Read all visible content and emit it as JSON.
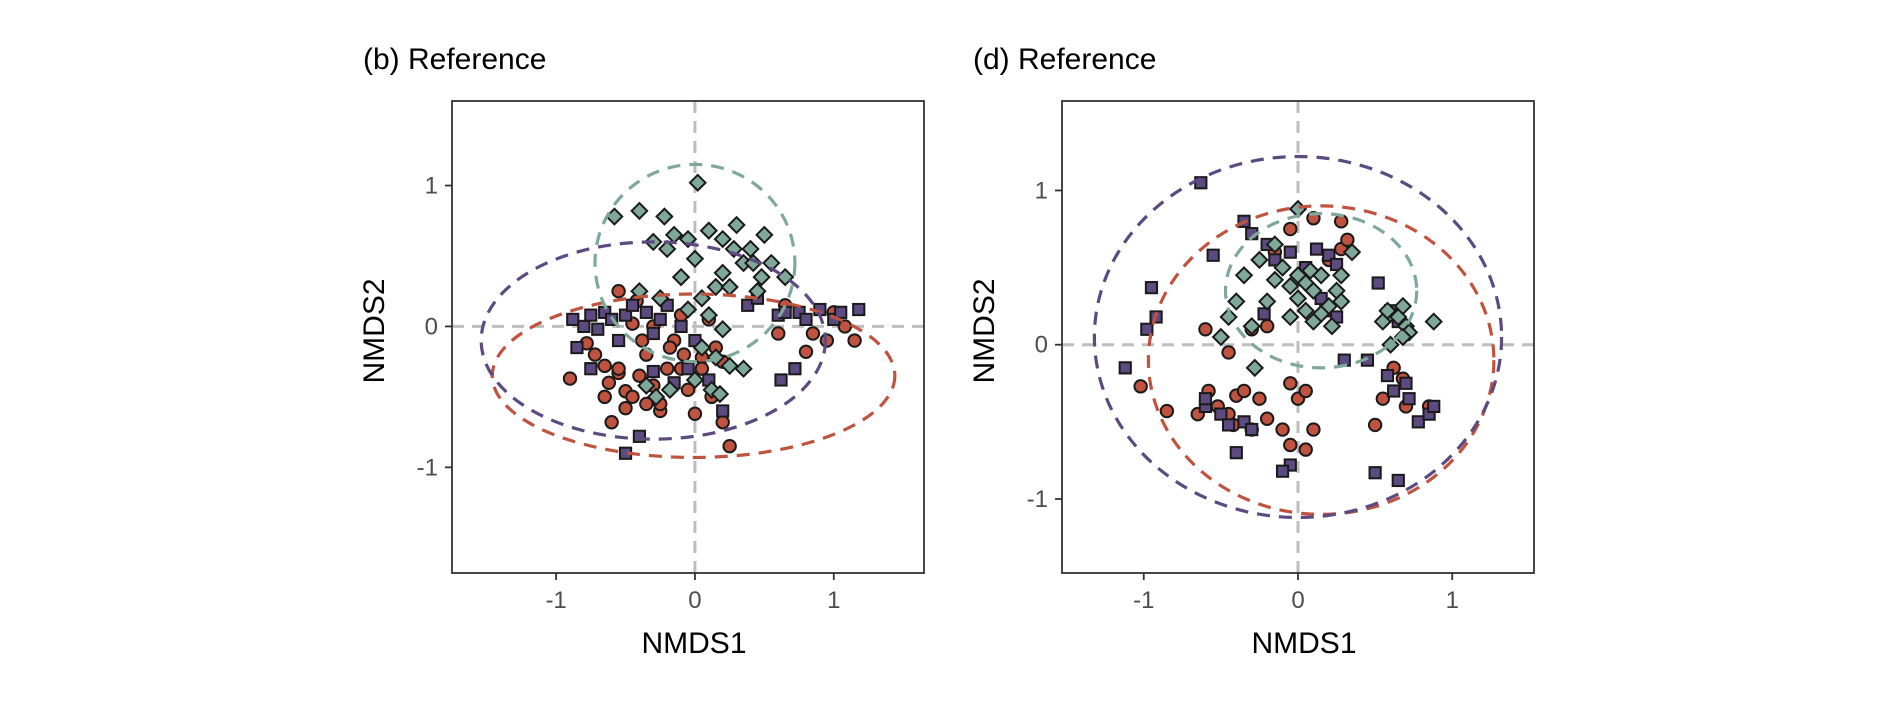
{
  "colors": {
    "series_1": "#c0533f",
    "series_2": "#5c4a80",
    "series_3": "#7fa89b",
    "reference_line": "#bdbdbd",
    "axis": "#333333"
  },
  "chart_data": [
    {
      "type": "scatter",
      "title": "(b) Reference",
      "xlabel": "NMDS1",
      "ylabel": "NMDS2",
      "xlim": [
        -1.75,
        1.65
      ],
      "ylim": [
        -1.75,
        1.6
      ],
      "xticks": [
        -1,
        0,
        1
      ],
      "yticks": [
        -1,
        0,
        1
      ],
      "xtick_labels": [
        "-1",
        "0",
        "1"
      ],
      "ytick_labels": [
        "-1",
        "0",
        "1"
      ],
      "reference_lines": {
        "x": 0,
        "y": 0
      },
      "grid": false,
      "legend": "none",
      "series": [
        {
          "marker": "circle",
          "color": "#c0533f",
          "points": [
            [
              -0.9,
              -0.37
            ],
            [
              -0.78,
              -0.12
            ],
            [
              -0.72,
              -0.2
            ],
            [
              -0.65,
              -0.28
            ],
            [
              -0.62,
              -0.4
            ],
            [
              -0.55,
              -0.33
            ],
            [
              -0.5,
              -0.46
            ],
            [
              -0.45,
              -0.5
            ],
            [
              -0.4,
              -0.35
            ],
            [
              -0.35,
              -0.2
            ],
            [
              -0.3,
              -0.42
            ],
            [
              -0.25,
              -0.6
            ],
            [
              -0.2,
              -0.3
            ],
            [
              -0.15,
              -0.1
            ],
            [
              -0.1,
              -0.3
            ],
            [
              -0.05,
              -0.45
            ],
            [
              0.0,
              -0.62
            ],
            [
              0.05,
              -0.22
            ],
            [
              0.12,
              -0.5
            ],
            [
              0.2,
              -0.68
            ],
            [
              0.25,
              -0.85
            ],
            [
              -0.6,
              -0.68
            ],
            [
              -0.55,
              0.25
            ],
            [
              -0.45,
              0.02
            ],
            [
              -0.42,
              0.18
            ],
            [
              -0.38,
              -0.1
            ],
            [
              -0.3,
              0.0
            ],
            [
              -0.25,
              -0.55
            ],
            [
              -0.18,
              -0.15
            ],
            [
              -0.1,
              0.08
            ],
            [
              -0.08,
              -0.2
            ],
            [
              0.05,
              -0.3
            ],
            [
              0.1,
              0.05
            ],
            [
              0.15,
              -0.15
            ],
            [
              0.2,
              -0.25
            ],
            [
              0.6,
              -0.05
            ],
            [
              0.65,
              0.15
            ],
            [
              0.8,
              -0.18
            ],
            [
              0.85,
              -0.05
            ],
            [
              0.95,
              -0.1
            ],
            [
              1.0,
              0.1
            ],
            [
              1.08,
              0.0
            ],
            [
              1.15,
              -0.1
            ],
            [
              -0.5,
              -0.58
            ],
            [
              -0.35,
              -0.55
            ],
            [
              -0.55,
              -0.3
            ],
            [
              -0.65,
              -0.5
            ]
          ]
        },
        {
          "marker": "square",
          "color": "#5c4a80",
          "points": [
            [
              -0.88,
              0.05
            ],
            [
              -0.8,
              0.0
            ],
            [
              -0.75,
              0.08
            ],
            [
              -0.7,
              -0.02
            ],
            [
              -0.65,
              0.1
            ],
            [
              -0.6,
              0.05
            ],
            [
              -0.55,
              -0.1
            ],
            [
              -0.5,
              0.08
            ],
            [
              -0.45,
              0.15
            ],
            [
              -0.35,
              0.1
            ],
            [
              -0.25,
              0.05
            ],
            [
              -0.2,
              0.15
            ],
            [
              -0.3,
              -0.05
            ],
            [
              -0.1,
              0.0
            ],
            [
              0.0,
              -0.1
            ],
            [
              -0.05,
              -0.3
            ],
            [
              -0.15,
              -0.4
            ],
            [
              -0.3,
              -0.32
            ],
            [
              -0.5,
              -0.9
            ],
            [
              -0.4,
              -0.78
            ],
            [
              0.6,
              0.08
            ],
            [
              0.65,
              0.1
            ],
            [
              0.75,
              0.1
            ],
            [
              0.8,
              0.05
            ],
            [
              0.9,
              0.12
            ],
            [
              1.0,
              0.05
            ],
            [
              1.05,
              0.1
            ],
            [
              1.18,
              0.12
            ],
            [
              0.62,
              -0.38
            ],
            [
              0.72,
              -0.3
            ],
            [
              0.38,
              0.15
            ],
            [
              0.45,
              0.2
            ],
            [
              -0.75,
              -0.3
            ],
            [
              -0.85,
              -0.15
            ],
            [
              0.1,
              -0.38
            ],
            [
              0.2,
              -0.6
            ]
          ]
        },
        {
          "marker": "diamond",
          "color": "#7fa89b",
          "points": [
            [
              -0.58,
              0.78
            ],
            [
              -0.4,
              0.82
            ],
            [
              -0.22,
              0.78
            ],
            [
              -0.15,
              0.65
            ],
            [
              -0.05,
              0.62
            ],
            [
              0.1,
              0.68
            ],
            [
              0.2,
              0.62
            ],
            [
              0.3,
              0.72
            ],
            [
              0.4,
              0.55
            ],
            [
              0.5,
              0.65
            ],
            [
              0.55,
              0.45
            ],
            [
              0.48,
              0.35
            ],
            [
              0.35,
              0.45
            ],
            [
              0.2,
              0.38
            ],
            [
              0.15,
              0.28
            ],
            [
              0.25,
              0.28
            ],
            [
              0.05,
              0.2
            ],
            [
              -0.05,
              0.12
            ],
            [
              0.1,
              0.08
            ],
            [
              0.2,
              -0.02
            ],
            [
              0.05,
              -0.15
            ],
            [
              0.15,
              -0.22
            ],
            [
              0.25,
              -0.28
            ],
            [
              0.35,
              -0.3
            ],
            [
              -0.2,
              0.55
            ],
            [
              -0.3,
              0.6
            ],
            [
              -0.1,
              0.35
            ],
            [
              0.0,
              0.48
            ],
            [
              0.28,
              0.55
            ],
            [
              0.42,
              0.45
            ],
            [
              -0.28,
              -0.5
            ],
            [
              -0.18,
              -0.45
            ],
            [
              0.0,
              -0.38
            ],
            [
              0.12,
              -0.45
            ],
            [
              0.18,
              -0.48
            ],
            [
              -0.4,
              0.25
            ],
            [
              -0.25,
              0.2
            ],
            [
              0.65,
              0.35
            ],
            [
              0.02,
              1.02
            ],
            [
              -0.35,
              -0.42
            ],
            [
              0.45,
              0.25
            ]
          ]
        }
      ],
      "ellipses": [
        {
          "color": "#c0533f",
          "cx": -0.01,
          "cy": -0.35,
          "rx": 1.45,
          "ry": 0.58
        },
        {
          "color": "#5c4a80",
          "cx": -0.3,
          "cy": -0.1,
          "rx": 1.24,
          "ry": 0.7
        },
        {
          "color": "#7fa89b",
          "cx": 0.0,
          "cy": 0.45,
          "rx": 0.72,
          "ry": 0.7
        }
      ]
    },
    {
      "type": "scatter",
      "title": "(d) Reference",
      "xlabel": "NMDS1",
      "ylabel": "NMDS2",
      "xlim": [
        -1.53,
        1.53
      ],
      "ylim": [
        -1.48,
        1.58
      ],
      "xticks": [
        -1,
        0,
        1
      ],
      "yticks": [
        -1,
        0,
        1
      ],
      "xtick_labels": [
        "-1",
        "0",
        "1"
      ],
      "ytick_labels": [
        "-1",
        "0",
        "1"
      ],
      "reference_lines": {
        "x": 0,
        "y": 0
      },
      "grid": false,
      "legend": "none",
      "series": [
        {
          "marker": "circle",
          "color": "#c0533f",
          "points": [
            [
              -1.02,
              -0.27
            ],
            [
              -0.85,
              -0.43
            ],
            [
              -0.6,
              0.1
            ],
            [
              -0.58,
              -0.3
            ],
            [
              -0.52,
              -0.4
            ],
            [
              -0.45,
              -0.45
            ],
            [
              -0.4,
              -0.33
            ],
            [
              -0.35,
              -0.3
            ],
            [
              -0.3,
              -0.55
            ],
            [
              -0.25,
              -0.35
            ],
            [
              -0.2,
              -0.48
            ],
            [
              -0.1,
              -0.55
            ],
            [
              -0.05,
              -0.65
            ],
            [
              0.0,
              -0.35
            ],
            [
              0.05,
              -0.3
            ],
            [
              -0.05,
              -0.25
            ],
            [
              0.1,
              -0.55
            ],
            [
              0.05,
              -0.68
            ],
            [
              -0.45,
              -0.05
            ],
            [
              -0.3,
              0.1
            ],
            [
              -0.2,
              0.12
            ],
            [
              -0.15,
              0.6
            ],
            [
              -0.05,
              0.75
            ],
            [
              0.1,
              0.82
            ],
            [
              0.2,
              0.55
            ],
            [
              0.28,
              0.62
            ],
            [
              0.32,
              0.68
            ],
            [
              0.28,
              0.8
            ],
            [
              0.5,
              -0.52
            ],
            [
              0.55,
              -0.35
            ],
            [
              0.62,
              -0.15
            ],
            [
              0.68,
              -0.22
            ],
            [
              0.7,
              -0.4
            ],
            [
              0.85,
              -0.4
            ],
            [
              -0.65,
              -0.45
            ],
            [
              -0.42,
              -0.52
            ]
          ]
        },
        {
          "marker": "square",
          "color": "#5c4a80",
          "points": [
            [
              -0.63,
              1.05
            ],
            [
              -0.95,
              0.37
            ],
            [
              -0.92,
              0.18
            ],
            [
              -0.98,
              0.1
            ],
            [
              -1.12,
              -0.15
            ],
            [
              -0.6,
              -0.4
            ],
            [
              -0.5,
              -0.45
            ],
            [
              -0.45,
              -0.52
            ],
            [
              -0.35,
              -0.5
            ],
            [
              -0.4,
              -0.7
            ],
            [
              -0.3,
              -0.55
            ],
            [
              -0.05,
              -0.78
            ],
            [
              -0.1,
              -0.82
            ],
            [
              -0.35,
              0.8
            ],
            [
              -0.3,
              0.72
            ],
            [
              -0.2,
              0.65
            ],
            [
              -0.15,
              0.55
            ],
            [
              -0.05,
              0.6
            ],
            [
              0.05,
              0.5
            ],
            [
              0.12,
              0.62
            ],
            [
              0.2,
              0.58
            ],
            [
              0.25,
              0.52
            ],
            [
              0.15,
              0.3
            ],
            [
              0.18,
              0.22
            ],
            [
              0.25,
              0.18
            ],
            [
              0.3,
              -0.1
            ],
            [
              0.45,
              -0.1
            ],
            [
              0.52,
              0.4
            ],
            [
              0.6,
              0.22
            ],
            [
              0.65,
              0.15
            ],
            [
              0.58,
              -0.2
            ],
            [
              0.62,
              -0.3
            ],
            [
              0.7,
              -0.25
            ],
            [
              0.72,
              -0.35
            ],
            [
              0.78,
              -0.5
            ],
            [
              0.85,
              -0.45
            ],
            [
              0.88,
              -0.4
            ],
            [
              0.5,
              -0.83
            ],
            [
              0.65,
              -0.88
            ],
            [
              -0.55,
              0.58
            ],
            [
              -0.22,
              0.2
            ],
            [
              -0.6,
              -0.35
            ]
          ]
        },
        {
          "marker": "diamond",
          "color": "#7fa89b",
          "points": [
            [
              0.0,
              0.88
            ],
            [
              -0.15,
              0.65
            ],
            [
              -0.25,
              0.55
            ],
            [
              -0.1,
              0.5
            ],
            [
              0.0,
              0.45
            ],
            [
              0.05,
              0.4
            ],
            [
              0.1,
              0.35
            ],
            [
              -0.05,
              0.38
            ],
            [
              -0.15,
              0.42
            ],
            [
              0.15,
              0.45
            ],
            [
              0.25,
              0.35
            ],
            [
              0.28,
              0.28
            ],
            [
              0.2,
              0.25
            ],
            [
              0.15,
              0.2
            ],
            [
              0.05,
              0.22
            ],
            [
              -0.05,
              0.18
            ],
            [
              -0.2,
              0.28
            ],
            [
              -0.35,
              0.45
            ],
            [
              -0.4,
              0.28
            ],
            [
              -0.3,
              0.12
            ],
            [
              -0.45,
              0.18
            ],
            [
              0.1,
              0.15
            ],
            [
              0.0,
              0.3
            ],
            [
              0.08,
              0.48
            ],
            [
              0.22,
              0.12
            ],
            [
              0.55,
              0.15
            ],
            [
              0.6,
              0.2
            ],
            [
              0.65,
              0.18
            ],
            [
              0.7,
              0.12
            ],
            [
              0.72,
              0.08
            ],
            [
              0.68,
              0.05
            ],
            [
              0.58,
              0.22
            ],
            [
              0.68,
              0.25
            ],
            [
              0.88,
              0.15
            ],
            [
              -0.5,
              0.05
            ],
            [
              -0.28,
              -0.15
            ],
            [
              0.28,
              0.45
            ],
            [
              0.35,
              0.6
            ],
            [
              0.6,
              0.0
            ]
          ]
        }
      ],
      "ellipses": [
        {
          "color": "#c0533f",
          "cx": 0.15,
          "cy": -0.1,
          "rx": 1.12,
          "ry": 1.0
        },
        {
          "color": "#5c4a80",
          "cx": 0.0,
          "cy": 0.05,
          "rx": 1.32,
          "ry": 1.17
        },
        {
          "color": "#7fa89b",
          "cx": 0.15,
          "cy": 0.35,
          "rx": 0.62,
          "ry": 0.5
        }
      ]
    }
  ]
}
